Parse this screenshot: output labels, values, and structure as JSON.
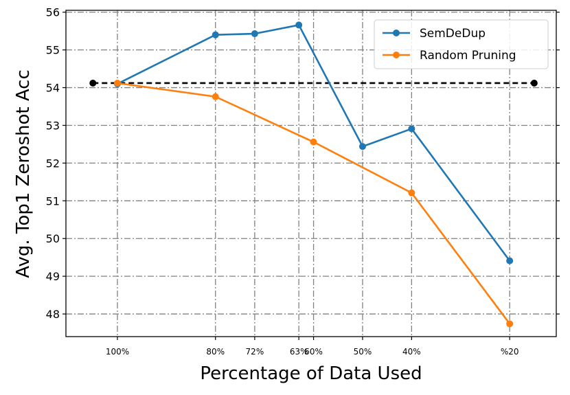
{
  "chart_data": {
    "type": "line",
    "xlabel": "Percentage of Data Used",
    "ylabel": "Avg. Top1 Zeroshot Acc",
    "x_tick_labels": [
      "100%",
      "80%",
      "72%",
      "63%",
      "60%",
      "50%",
      "40%",
      "%20"
    ],
    "x_ticks": [
      100,
      80,
      72,
      63,
      60,
      50,
      40,
      20
    ],
    "ylim": [
      47.4,
      56.05
    ],
    "y_ticks": [
      48,
      49,
      50,
      51,
      52,
      53,
      54,
      55,
      56
    ],
    "grid": true,
    "legend_position": "top-right",
    "series": [
      {
        "name": "SemDeDup",
        "color": "#1f77b4",
        "x": [
          100,
          80,
          72,
          63,
          50,
          40,
          20
        ],
        "y": [
          54.1,
          55.4,
          55.43,
          55.66,
          52.44,
          52.91,
          49.41
        ]
      },
      {
        "name": "Random Pruning",
        "color": "#ff7f0e",
        "x": [
          100,
          80,
          60,
          40,
          20
        ],
        "y": [
          54.12,
          53.76,
          52.56,
          51.21,
          47.74
        ]
      }
    ],
    "baseline": {
      "color": "#000000",
      "style": "dashed",
      "x": [
        105,
        15
      ],
      "y": [
        54.12,
        54.12
      ]
    }
  }
}
